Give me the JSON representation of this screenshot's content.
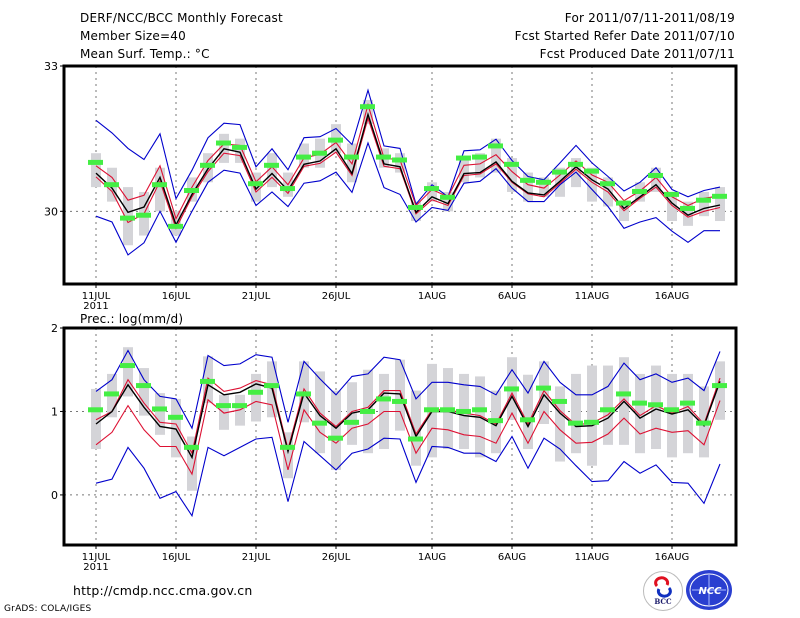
{
  "header": {
    "title": "DERF/NCC/BCC Monthly Forecast",
    "member_size": "Member Size=40",
    "variable": "Mean Surf. Temp.: °C",
    "period": "For 2011/07/11-2011/08/19",
    "start_date": "Fcst Started Refer Date 2011/07/10",
    "produced_date": "Fcst Produced Date 2011/07/11"
  },
  "footer": {
    "url": "http://cmdp.ncc.cma.gov.cn",
    "credit": "GrADS: COLA/IGES",
    "logos": [
      "BCC",
      "NCC"
    ]
  },
  "colors": {
    "blue": "#0000cc",
    "red": "#dd1133",
    "black": "#000000",
    "green": "#44ee44",
    "gray": "#d4d4d8"
  },
  "chart_data": [
    {
      "type": "line",
      "title": "Mean Surf. Temp.: °C",
      "ylabel": "°C",
      "ylim": [
        28.5,
        33
      ],
      "yticks": [
        30,
        33
      ],
      "grid": true,
      "x_start": "2011-07-11",
      "n_days": 40,
      "xticks": [
        {
          "day": 0,
          "label": "11JUL",
          "sub": "2011"
        },
        {
          "day": 5,
          "label": "16JUL"
        },
        {
          "day": 10,
          "label": "21JUL"
        },
        {
          "day": 15,
          "label": "26JUL"
        },
        {
          "day": 21,
          "label": "1AUG"
        },
        {
          "day": 26,
          "label": "6AUG"
        },
        {
          "day": 31,
          "label": "11AUG"
        },
        {
          "day": 36,
          "label": "16AUG"
        }
      ],
      "series": [
        {
          "name": "range-max",
          "kind": "box-top",
          "values": [
            31.2,
            30.9,
            30.5,
            30.4,
            30.9,
            30.0,
            30.7,
            31.2,
            31.6,
            31.5,
            30.8,
            31.2,
            30.8,
            31.4,
            31.5,
            31.8,
            31.4,
            32.3,
            31.3,
            31.2,
            30.2,
            30.6,
            30.4,
            31.1,
            31.2,
            31.5,
            31.1,
            30.8,
            30.7,
            30.9,
            31.1,
            30.9,
            30.7,
            30.2,
            30.6,
            30.9,
            30.4,
            30.2,
            30.4,
            30.5
          ]
        },
        {
          "name": "range-min",
          "kind": "box-bottom",
          "values": [
            30.5,
            30.2,
            29.3,
            29.5,
            30.0,
            29.5,
            30.2,
            30.6,
            31.0,
            31.0,
            30.2,
            30.5,
            30.3,
            30.9,
            30.9,
            31.2,
            30.6,
            31.8,
            30.9,
            30.8,
            29.8,
            30.2,
            30.0,
            30.6,
            30.7,
            30.8,
            30.4,
            30.2,
            30.3,
            30.3,
            30.5,
            30.2,
            30.1,
            29.8,
            30.2,
            30.4,
            29.8,
            29.7,
            29.9,
            29.8
          ]
        },
        {
          "name": "ensemble-members",
          "kind": "green-mark",
          "values": [
            31.01,
            30.55,
            29.86,
            29.92,
            30.55,
            29.69,
            30.43,
            30.95,
            31.41,
            31.32,
            30.57,
            30.95,
            30.47,
            31.12,
            31.2,
            31.47,
            31.12,
            32.16,
            31.12,
            31.06,
            30.08,
            30.47,
            30.29,
            31.1,
            31.12,
            31.35,
            30.97,
            30.64,
            30.6,
            30.81,
            30.97,
            30.83,
            30.57,
            30.17,
            30.41,
            30.74,
            30.35,
            30.06,
            30.23,
            30.31
          ]
        },
        {
          "name": "blue-upper",
          "color": "blue",
          "values": [
            31.88,
            31.62,
            31.3,
            31.07,
            31.6,
            30.26,
            30.85,
            31.52,
            31.82,
            31.79,
            30.92,
            31.29,
            30.86,
            31.52,
            31.54,
            31.71,
            31.38,
            32.5,
            31.35,
            31.3,
            30.15,
            30.55,
            30.3,
            31.25,
            31.27,
            31.49,
            31.05,
            30.72,
            30.65,
            31.0,
            31.36,
            31.0,
            30.72,
            30.42,
            30.6,
            30.9,
            30.45,
            30.3,
            30.43,
            30.5
          ]
        },
        {
          "name": "red-upper",
          "color": "red",
          "values": [
            30.94,
            30.7,
            30.23,
            30.33,
            30.94,
            29.85,
            30.5,
            31.05,
            31.39,
            31.36,
            30.61,
            30.92,
            30.55,
            31.1,
            31.18,
            31.42,
            30.98,
            32.2,
            31.1,
            31.06,
            30.12,
            30.45,
            30.3,
            30.95,
            30.98,
            31.17,
            30.82,
            30.55,
            30.48,
            30.75,
            31.04,
            30.75,
            30.6,
            30.22,
            30.42,
            30.7,
            30.3,
            30.12,
            30.27,
            30.32
          ]
        },
        {
          "name": "mean",
          "color": "black",
          "values": [
            30.79,
            30.48,
            29.98,
            30.09,
            30.7,
            29.72,
            30.35,
            30.88,
            31.29,
            31.22,
            30.46,
            30.78,
            30.43,
            30.97,
            31.04,
            31.29,
            30.78,
            32.0,
            30.98,
            30.92,
            29.98,
            30.3,
            30.16,
            30.78,
            30.8,
            31.02,
            30.62,
            30.38,
            30.34,
            30.62,
            30.92,
            30.65,
            30.46,
            30.06,
            30.3,
            30.55,
            30.17,
            29.92,
            30.06,
            30.13
          ]
        },
        {
          "name": "red-lower",
          "color": "red",
          "values": [
            30.71,
            30.41,
            29.77,
            29.95,
            30.62,
            29.65,
            30.3,
            30.82,
            31.2,
            31.15,
            30.4,
            30.7,
            30.37,
            30.93,
            30.99,
            31.22,
            30.74,
            31.92,
            30.93,
            30.88,
            29.95,
            30.24,
            30.12,
            30.74,
            30.77,
            30.98,
            30.6,
            30.36,
            30.3,
            30.58,
            30.87,
            30.6,
            30.4,
            30.01,
            30.27,
            30.5,
            30.12,
            29.88,
            30.0,
            30.08
          ]
        },
        {
          "name": "blue-lower",
          "color": "blue",
          "values": [
            29.9,
            29.78,
            29.1,
            29.35,
            30.0,
            29.36,
            30.0,
            30.6,
            30.85,
            30.79,
            30.12,
            30.4,
            30.1,
            30.58,
            30.63,
            30.81,
            30.39,
            31.41,
            30.49,
            30.35,
            29.78,
            30.08,
            30.02,
            30.58,
            30.62,
            30.88,
            30.48,
            30.2,
            30.2,
            30.55,
            30.81,
            30.45,
            30.1,
            29.65,
            29.78,
            29.87,
            29.59,
            29.36,
            29.6,
            29.6
          ]
        }
      ]
    },
    {
      "type": "line",
      "title": "Prec.: log(mm/d)",
      "ylabel": "log(mm/d)",
      "ylim": [
        -0.6,
        2
      ],
      "yticks": [
        0,
        1,
        2
      ],
      "grid": true,
      "x_start": "2011-07-11",
      "n_days": 40,
      "xticks": [
        {
          "day": 0,
          "label": "11JUL",
          "sub": "2011"
        },
        {
          "day": 5,
          "label": "16JUL"
        },
        {
          "day": 10,
          "label": "21JUL"
        },
        {
          "day": 15,
          "label": "26JUL"
        },
        {
          "day": 21,
          "label": "1AUG"
        },
        {
          "day": 26,
          "label": "6AUG"
        },
        {
          "day": 31,
          "label": "11AUG"
        },
        {
          "day": 36,
          "label": "16AUG"
        }
      ],
      "series": [
        {
          "name": "range-max",
          "kind": "box-top",
          "values": [
            1.27,
            1.45,
            1.77,
            1.52,
            1.22,
            1.15,
            0.7,
            1.66,
            1.2,
            1.2,
            1.45,
            1.6,
            0.75,
            1.6,
            1.48,
            1.25,
            1.35,
            1.5,
            1.45,
            1.62,
            1.25,
            1.57,
            1.52,
            1.45,
            1.42,
            1.25,
            1.65,
            1.44,
            1.6,
            1.3,
            1.45,
            1.55,
            1.55,
            1.65,
            1.45,
            1.55,
            1.45,
            1.45,
            1.3,
            1.6
          ]
        },
        {
          "name": "range-min",
          "kind": "box-bottom",
          "values": [
            0.55,
            0.93,
            1.18,
            0.95,
            0.72,
            0.45,
            0.05,
            1.1,
            0.78,
            0.83,
            0.88,
            0.93,
            0.2,
            0.87,
            0.5,
            0.3,
            0.6,
            0.5,
            0.55,
            0.77,
            0.35,
            0.45,
            0.55,
            0.55,
            0.45,
            0.5,
            0.9,
            0.55,
            0.85,
            0.4,
            0.5,
            0.35,
            0.6,
            0.6,
            0.5,
            0.55,
            0.45,
            0.5,
            0.45,
            0.9
          ]
        },
        {
          "name": "ensemble-members",
          "kind": "green-mark",
          "values": [
            1.02,
            1.21,
            1.55,
            1.31,
            1.03,
            0.93,
            0.57,
            1.36,
            1.07,
            1.07,
            1.23,
            1.31,
            0.57,
            1.21,
            0.86,
            0.68,
            0.87,
            1.0,
            1.15,
            1.12,
            0.67,
            1.02,
            1.02,
            1.0,
            1.02,
            0.89,
            1.27,
            0.9,
            1.28,
            1.12,
            0.86,
            0.87,
            1.02,
            1.21,
            1.1,
            1.08,
            1.02,
            1.1,
            0.86,
            1.31
          ]
        },
        {
          "name": "blue-upper",
          "color": "blue",
          "values": [
            1.24,
            1.38,
            1.73,
            1.38,
            1.18,
            1.15,
            0.8,
            1.67,
            1.55,
            1.57,
            1.68,
            1.65,
            0.87,
            1.6,
            1.39,
            1.2,
            1.42,
            1.45,
            1.65,
            1.62,
            1.15,
            1.35,
            1.35,
            1.32,
            1.3,
            1.2,
            1.5,
            1.22,
            1.6,
            1.35,
            1.2,
            1.2,
            1.3,
            1.58,
            1.38,
            1.45,
            1.35,
            1.4,
            1.25,
            1.72
          ]
        },
        {
          "name": "red-upper",
          "color": "red",
          "values": [
            0.9,
            1.0,
            1.38,
            1.1,
            0.87,
            0.85,
            0.5,
            1.4,
            1.24,
            1.28,
            1.37,
            1.32,
            0.55,
            1.27,
            0.98,
            0.82,
            1.0,
            1.05,
            1.25,
            1.25,
            0.73,
            1.02,
            1.02,
            0.98,
            0.95,
            0.85,
            1.22,
            0.85,
            1.25,
            1.01,
            0.84,
            0.86,
            0.96,
            1.15,
            0.95,
            1.07,
            0.98,
            1.06,
            0.85,
            1.4
          ]
        },
        {
          "name": "mean",
          "color": "black",
          "values": [
            0.85,
            1.0,
            1.32,
            1.05,
            0.82,
            0.79,
            0.45,
            1.32,
            1.2,
            1.23,
            1.33,
            1.28,
            0.52,
            1.22,
            0.95,
            0.8,
            0.98,
            1.02,
            1.22,
            1.21,
            0.7,
            1.0,
            1.0,
            0.95,
            0.93,
            0.83,
            1.18,
            0.82,
            1.2,
            0.98,
            0.82,
            0.83,
            0.92,
            1.12,
            0.92,
            1.03,
            0.97,
            1.02,
            0.83,
            1.36
          ]
        },
        {
          "name": "red-lower",
          "color": "red",
          "values": [
            0.6,
            0.75,
            1.07,
            0.78,
            0.58,
            0.58,
            0.25,
            1.14,
            0.98,
            1.02,
            1.12,
            1.08,
            0.3,
            1.02,
            0.75,
            0.62,
            0.8,
            0.85,
            1.0,
            1.0,
            0.5,
            0.8,
            0.78,
            0.72,
            0.7,
            0.62,
            0.98,
            0.62,
            1.0,
            0.78,
            0.62,
            0.63,
            0.73,
            0.92,
            0.73,
            0.8,
            0.75,
            0.77,
            0.6,
            1.13
          ]
        },
        {
          "name": "blue-lower",
          "color": "blue",
          "values": [
            0.14,
            0.19,
            0.57,
            0.32,
            -0.04,
            0.04,
            -0.25,
            0.57,
            0.47,
            0.57,
            0.67,
            0.69,
            -0.08,
            0.64,
            0.47,
            0.3,
            0.5,
            0.55,
            0.68,
            0.67,
            0.15,
            0.58,
            0.57,
            0.5,
            0.5,
            0.4,
            0.7,
            0.32,
            0.68,
            0.55,
            0.35,
            0.16,
            0.17,
            0.4,
            0.26,
            0.36,
            0.15,
            0.14,
            -0.1,
            0.37
          ]
        }
      ]
    }
  ]
}
